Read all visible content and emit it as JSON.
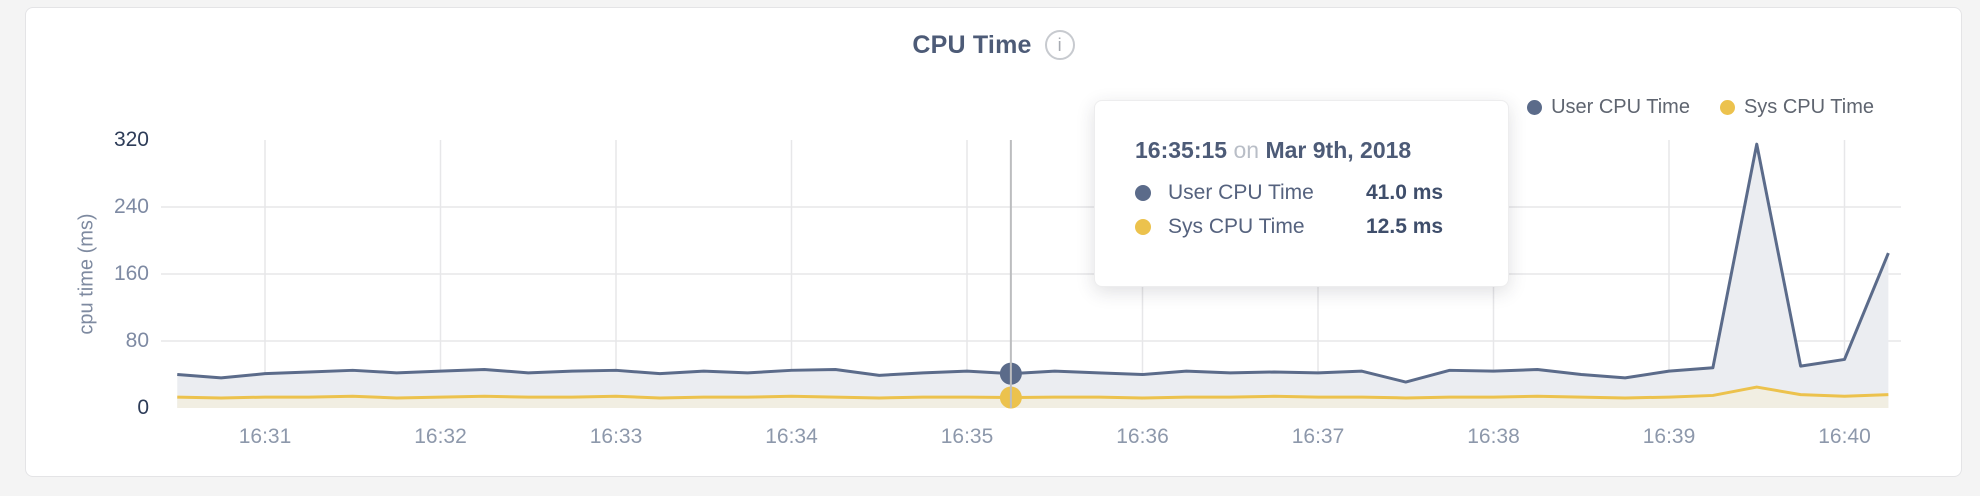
{
  "header": {
    "title": "CPU Time",
    "info_glyph": "i"
  },
  "legend": [
    {
      "label": "User CPU Time",
      "color": "#5b6b8a"
    },
    {
      "label": "Sys CPU Time",
      "color": "#ecc24d"
    }
  ],
  "tooltip": {
    "time": "16:35:15",
    "connector": "on",
    "date": "Mar 9th, 2018",
    "rows": [
      {
        "label": "User CPU Time",
        "value": "41.0 ms",
        "color": "#5b6b8a"
      },
      {
        "label": "Sys CPU Time",
        "value": "12.5 ms",
        "color": "#ecc24d"
      }
    ]
  },
  "colors": {
    "user": "#5b6b8a",
    "sys": "#ecc24d",
    "user_fill": "#ebedf1",
    "sys_fill": "#f1eee2",
    "grid": "#e7e7e9",
    "crosshair": "#bcbdbf",
    "page_bg": "#f4f4f4",
    "card_bg": "#ffffff"
  },
  "chart_data": {
    "type": "area",
    "title": "CPU Time",
    "ylabel": "cpu time (ms)",
    "xlabel": "",
    "ylim": [
      0,
      320
    ],
    "yticks": [
      0,
      80,
      160,
      240,
      320
    ],
    "xticks": [
      "16:31",
      "16:32",
      "16:33",
      "16:34",
      "16:35",
      "16:36",
      "16:37",
      "16:38",
      "16:39",
      "16:40"
    ],
    "grid": true,
    "legend_position": "top-right",
    "x": [
      "16:30:30",
      "16:30:45",
      "16:31:00",
      "16:31:15",
      "16:31:30",
      "16:31:45",
      "16:32:00",
      "16:32:15",
      "16:32:30",
      "16:32:45",
      "16:33:00",
      "16:33:15",
      "16:33:30",
      "16:33:45",
      "16:34:00",
      "16:34:15",
      "16:34:30",
      "16:34:45",
      "16:35:00",
      "16:35:15",
      "16:35:30",
      "16:35:45",
      "16:36:00",
      "16:36:15",
      "16:36:30",
      "16:36:45",
      "16:37:00",
      "16:37:15",
      "16:37:30",
      "16:37:45",
      "16:38:00",
      "16:38:15",
      "16:38:30",
      "16:38:45",
      "16:39:00",
      "16:39:15",
      "16:39:30",
      "16:39:45",
      "16:40:00",
      "16:40:15"
    ],
    "series": [
      {
        "name": "User CPU Time",
        "color": "#5b6b8a",
        "fill": "#ebedf1",
        "values": [
          40,
          36,
          41,
          43,
          45,
          42,
          44,
          46,
          42,
          44,
          45,
          41,
          44,
          42,
          45,
          46,
          39,
          42,
          44,
          41,
          44,
          42,
          40,
          44,
          42,
          43,
          42,
          44,
          31,
          45,
          44,
          46,
          40,
          36,
          44,
          48,
          315,
          50,
          58,
          185
        ]
      },
      {
        "name": "Sys CPU Time",
        "color": "#ecc24d",
        "fill": "#f1eee2",
        "values": [
          13,
          12,
          13,
          13,
          14,
          12,
          13,
          14,
          13,
          13,
          14,
          12,
          13,
          13,
          14,
          13,
          12,
          13,
          13,
          12.5,
          13,
          13,
          12,
          13,
          13,
          14,
          13,
          13,
          12,
          13,
          13,
          14,
          13,
          12,
          13,
          15,
          25,
          16,
          14,
          16
        ]
      }
    ],
    "hovered": {
      "time": "16:35:15",
      "values": [
        41.0,
        12.5
      ]
    }
  }
}
